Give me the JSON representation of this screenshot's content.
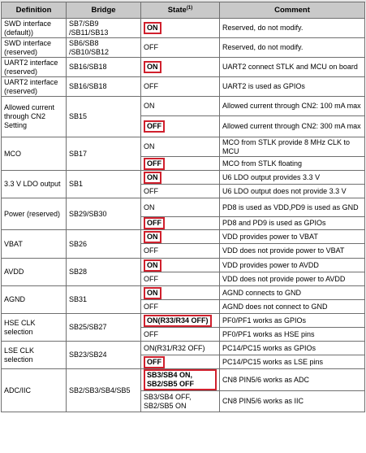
{
  "table": {
    "headers": {
      "definition": "Definition",
      "bridge": "Bridge",
      "state": "State",
      "state_note": "(1)",
      "comment": "Comment"
    },
    "groups": [
      {
        "def": "SWD interface (default))",
        "bridge": "SB7/SB9 /SB11/SB13",
        "rows": [
          {
            "state": "ON",
            "highlighted": true,
            "comment": "Reserved, do not modify."
          }
        ]
      },
      {
        "def": "SWD interface (reserved)",
        "bridge": "SB6/SB8 /SB10/SB12",
        "rows": [
          {
            "state": "OFF",
            "highlighted": false,
            "comment": "Reserved, do not modify."
          }
        ]
      },
      {
        "def": "UART2 interface (reserved)",
        "bridge": "SB16/SB18",
        "rows": [
          {
            "state": "ON",
            "highlighted": true,
            "comment": "UART2 connect STLK and MCU on board"
          }
        ]
      },
      {
        "def": "UART2 interface (reserved)",
        "bridge": "SB16/SB18",
        "rows": [
          {
            "state": "OFF",
            "highlighted": false,
            "comment": "UART2 is used as GPIOs"
          }
        ]
      },
      {
        "def": "Allowed current through CN2 Setting",
        "bridge": "SB15",
        "rows": [
          {
            "state": "ON",
            "highlighted": false,
            "comment": "Allowed current through CN2: 100 mA max"
          },
          {
            "state": "OFF",
            "highlighted": true,
            "comment": "Allowed current through CN2: 300 mA max"
          }
        ]
      },
      {
        "def": "MCO",
        "bridge": "SB17",
        "rows": [
          {
            "state": "ON",
            "highlighted": false,
            "comment": "MCO from STLK provide 8 MHz CLK to MCU"
          },
          {
            "state": "OFF",
            "highlighted": true,
            "comment": "MCO from STLK floating"
          }
        ]
      },
      {
        "def": "3.3 V LDO output",
        "bridge": "SB1",
        "rows": [
          {
            "state": "ON",
            "highlighted": true,
            "comment": "U6 LDO output provides 3.3 V"
          },
          {
            "state": "OFF",
            "highlighted": false,
            "comment": "U6 LDO output does not provide 3.3 V"
          }
        ]
      },
      {
        "def": "Power (reserved)",
        "bridge": "SB29/SB30",
        "rows": [
          {
            "state": "ON",
            "highlighted": false,
            "comment": "PD8 is used as VDD,PD9 is used as GND"
          },
          {
            "state": "OFF",
            "highlighted": true,
            "comment": "PD8 and PD9 is used as GPIOs"
          }
        ]
      },
      {
        "def": "VBAT",
        "bridge": "SB26",
        "rows": [
          {
            "state": "ON",
            "highlighted": true,
            "comment": "VDD provides power to VBAT"
          },
          {
            "state": "OFF",
            "highlighted": false,
            "comment": "VDD does not provide power to VBAT"
          }
        ]
      },
      {
        "def": "AVDD",
        "bridge": "SB28",
        "rows": [
          {
            "state": "ON",
            "highlighted": true,
            "comment": "VDD provides power to AVDD"
          },
          {
            "state": "OFF",
            "highlighted": false,
            "comment": "VDD does not provide power to AVDD"
          }
        ]
      },
      {
        "def": "AGND",
        "bridge": "SB31",
        "rows": [
          {
            "state": "ON",
            "highlighted": true,
            "comment": "AGND connects to GND"
          },
          {
            "state": "OFF",
            "highlighted": false,
            "comment": "AGND does not connect to GND"
          }
        ]
      },
      {
        "def": "HSE CLK selection",
        "bridge": "SB25/SB27",
        "rows": [
          {
            "state": "ON(R33/R34 OFF)",
            "highlighted": true,
            "comment": "PF0/PF1 works as GPIOs"
          },
          {
            "state": "OFF",
            "highlighted": false,
            "comment": "PF0/PF1 works as HSE pins"
          }
        ]
      },
      {
        "def": "LSE CLK selection",
        "bridge": "SB23/SB24",
        "rows": [
          {
            "state": "ON(R31/R32 OFF)",
            "highlighted": false,
            "comment": "PC14/PC15 works as GPIOs"
          },
          {
            "state": "OFF",
            "highlighted": true,
            "comment": "PC14/PC15 works as LSE pins"
          }
        ]
      },
      {
        "def": "ADC/IIC",
        "bridge": "SB2/SB3/SB4/SB5",
        "rows": [
          {
            "state": "SB3/SB4 ON, SB2/SB5 OFF",
            "highlighted": true,
            "comment": "CN8 PIN5/6 works as ADC"
          },
          {
            "state": "SB3/SB4 OFF, SB2/SB5 ON",
            "highlighted": false,
            "comment": "CN8 PIN5/6 works as IIC"
          }
        ]
      }
    ]
  },
  "colors": {
    "highlight_border": "#d0202d",
    "header_background": "#c9c9c9",
    "grid_line": "#6f6f6f"
  }
}
